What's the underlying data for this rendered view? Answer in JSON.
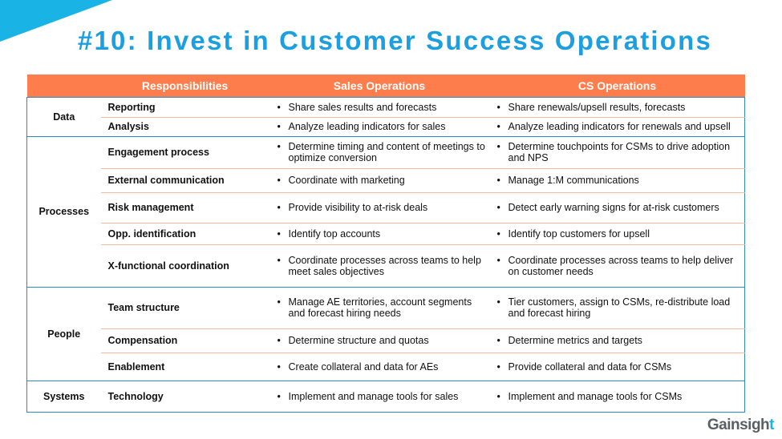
{
  "title": "#10: Invest in Customer Success Operations",
  "headers": [
    "",
    "Responsibilities",
    "Sales Operations",
    "CS Operations"
  ],
  "groups": [
    {
      "name": "Data",
      "rows": [
        {
          "resp": "Reporting",
          "sales": "Share sales results and forecasts",
          "cs": "Share renewals/upsell results, forecasts"
        },
        {
          "resp": "Analysis",
          "sales": "Analyze leading indicators for sales",
          "cs": "Analyze leading indicators for renewals and upsell"
        }
      ]
    },
    {
      "name": "Processes",
      "rows": [
        {
          "resp": "Engagement process",
          "sales": "Determine timing and content of meetings to optimize conversion",
          "cs": "Determine touchpoints for CSMs to drive adoption and NPS"
        },
        {
          "resp": "External communication",
          "sales": "Coordinate with marketing",
          "cs": "Manage 1:M communications"
        },
        {
          "resp": "Risk management",
          "sales": "Provide visibility to at-risk deals",
          "cs": "Detect early warning signs for at-risk customers"
        },
        {
          "resp": "Opp. identification",
          "sales": "Identify top accounts",
          "cs": "Identify top customers for upsell"
        },
        {
          "resp": "X-functional coordination",
          "sales": "Coordinate processes across teams to help meet sales objectives",
          "cs": "Coordinate processes across teams to help deliver on customer needs"
        }
      ]
    },
    {
      "name": "People",
      "rows": [
        {
          "resp": "Team structure",
          "sales": "Manage AE territories, account segments and forecast hiring needs",
          "cs": "Tier customers, assign to CSMs, re-distribute load and forecast hiring"
        },
        {
          "resp": "Compensation",
          "sales": "Determine structure and quotas",
          "cs": "Determine metrics and targets"
        },
        {
          "resp": "Enablement",
          "sales": "Create collateral and data for AEs",
          "cs": "Provide collateral and data for CSMs"
        }
      ]
    },
    {
      "name": "Systems",
      "rows": [
        {
          "resp": "Technology",
          "sales": "Implement and manage tools for sales",
          "cs": "Implement and manage tools for CSMs"
        }
      ]
    }
  ],
  "logo": {
    "main": "Gainsigh",
    "accent": "t"
  },
  "colors": {
    "title": "#1b9fe0",
    "header": "#fd7e4c",
    "border": "#2a8fc0"
  }
}
